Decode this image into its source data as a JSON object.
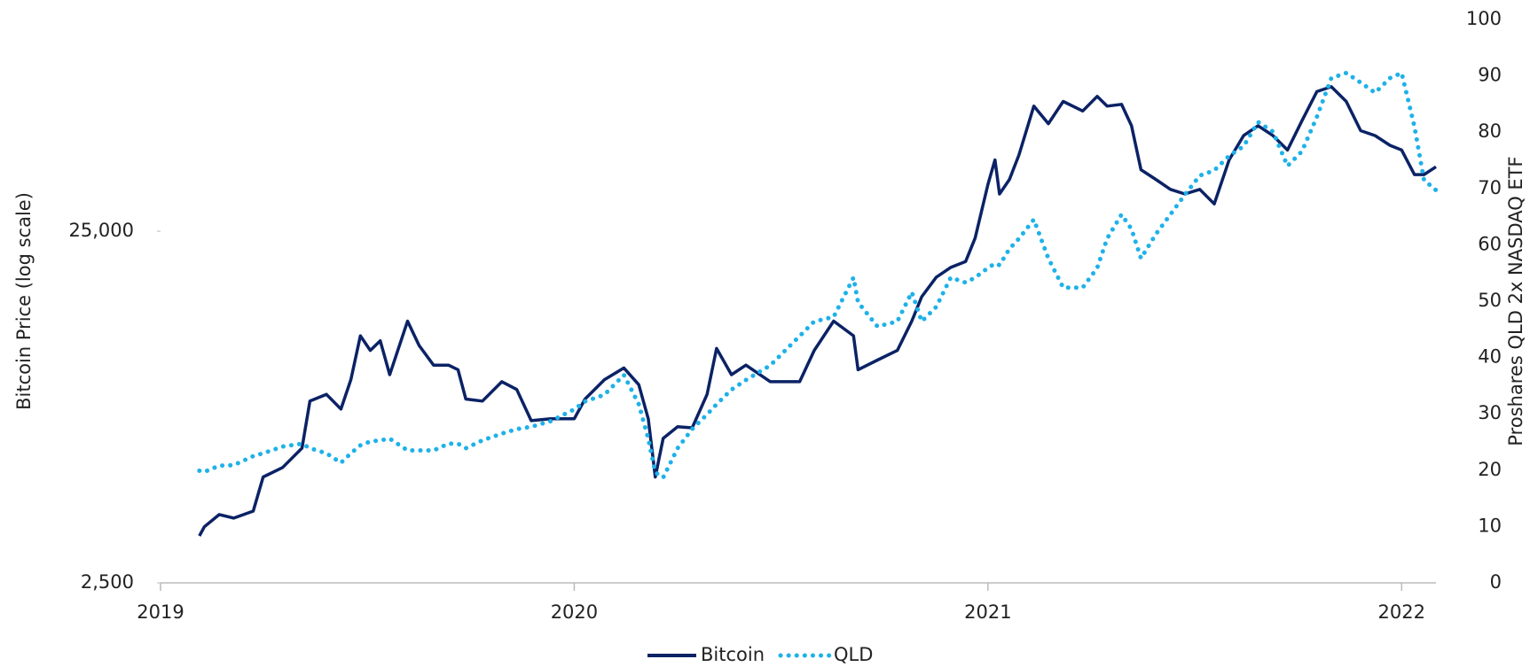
{
  "chart_data": {
    "type": "line",
    "y_label": "Bitcoin Price (log scale)",
    "y2_label": "Proshares QLD 2x NASDAQ ETF",
    "x": [
      2019.094,
      2019.106,
      2019.142,
      2019.177,
      2019.224,
      2019.248,
      2019.295,
      2019.342,
      2019.361,
      2019.401,
      2019.436,
      2019.46,
      2019.483,
      2019.507,
      2019.531,
      2019.554,
      2019.597,
      2019.625,
      2019.66,
      2019.696,
      2019.719,
      2019.738,
      2019.778,
      2019.825,
      2019.861,
      2019.896,
      2019.943,
      2020.0,
      2020.026,
      2020.073,
      2020.12,
      2020.156,
      2020.179,
      2020.196,
      2020.215,
      2020.25,
      2020.285,
      2020.321,
      2020.344,
      2020.38,
      2020.415,
      2020.474,
      2020.545,
      2020.58,
      2020.627,
      2020.675,
      2020.686,
      2020.733,
      2020.781,
      2020.816,
      2020.84,
      2020.875,
      2020.91,
      2020.946,
      2020.969,
      2021.0,
      2021.017,
      2021.028,
      2021.052,
      2021.075,
      2021.111,
      2021.146,
      2021.182,
      2021.229,
      2021.264,
      2021.288,
      2021.323,
      2021.347,
      2021.37,
      2021.406,
      2021.441,
      2021.476,
      2021.512,
      2021.547,
      2021.583,
      2021.618,
      2021.653,
      2021.689,
      2021.724,
      2021.759,
      2021.795,
      2021.83,
      2021.866,
      2021.901,
      2021.936,
      2021.972,
      2022.0,
      2022.031,
      2022.054,
      2022.083
    ],
    "series": [
      {
        "name": "Bitcoin",
        "color": "#0b2265",
        "style": "solid",
        "values": [
          3400,
          3610,
          3910,
          3820,
          4000,
          5000,
          5320,
          6040,
          8220,
          8590,
          7800,
          9460,
          12600,
          11450,
          12200,
          9770,
          13880,
          11830,
          10400,
          10400,
          10090,
          8330,
          8220,
          9330,
          8870,
          7230,
          7320,
          7320,
          8330,
          9460,
          10210,
          9150,
          7320,
          5000,
          6440,
          6950,
          6900,
          8590,
          11600,
          9770,
          10400,
          9330,
          9330,
          11450,
          13880,
          12600,
          10090,
          10750,
          11450,
          13880,
          16280,
          18500,
          19720,
          20500,
          23900,
          33990,
          39880,
          31900,
          35080,
          41170,
          56700,
          50560,
          58480,
          54940,
          60450,
          56700,
          57380,
          49900,
          37400,
          35080,
          32880,
          31900,
          32880,
          29900,
          39880,
          46760,
          49900,
          46760,
          42520,
          51530,
          62380,
          64400,
          58480,
          48290,
          46760,
          43860,
          42520,
          36210,
          36210,
          38120
        ]
      },
      {
        "name": "QLD",
        "color": "#1fb1e8",
        "style": "dotted",
        "axis": "y2",
        "values": [
          19.9,
          19.7,
          20.8,
          20.9,
          22.5,
          23,
          24.2,
          24.7,
          23.9,
          23,
          21.3,
          23,
          24.4,
          25.1,
          25.3,
          25.6,
          23.5,
          23.5,
          23.5,
          24.7,
          24.7,
          23.9,
          25.3,
          26.5,
          27.3,
          27.7,
          28.7,
          30.8,
          32.2,
          33.4,
          36.9,
          31.7,
          25.6,
          19.6,
          18.7,
          23.9,
          27.3,
          29.9,
          31.7,
          34.3,
          36,
          38.6,
          43.8,
          46.4,
          47.2,
          54.2,
          49.8,
          45.5,
          46.4,
          51.6,
          46.4,
          49,
          54.2,
          53.3,
          54.2,
          55.9,
          56.7,
          56.4,
          59.3,
          61.1,
          64.5,
          57.6,
          52.4,
          52.4,
          55.9,
          61.1,
          65.4,
          62.8,
          57.6,
          61.9,
          65.4,
          68.9,
          72.3,
          73.2,
          75.8,
          77.5,
          81.8,
          80.1,
          74,
          76.6,
          82.7,
          89.6,
          90.5,
          88.8,
          87,
          89.6,
          90.5,
          81,
          71.5,
          69.7
        ]
      }
    ],
    "xlim": [
      2019,
      2022.083
    ],
    "xticks": [
      2019,
      2020,
      2021,
      2022
    ],
    "ylim": [
      2500,
      100000
    ],
    "ylog": true,
    "yticks": [
      {
        "value": 2500,
        "label": "2,500"
      },
      {
        "value": 25000,
        "label": "25,000"
      }
    ],
    "y2lim": [
      0,
      100
    ],
    "y2ticks": [
      0,
      10,
      20,
      30,
      40,
      50,
      60,
      70,
      80,
      90,
      100
    ],
    "legend": "bottom"
  }
}
